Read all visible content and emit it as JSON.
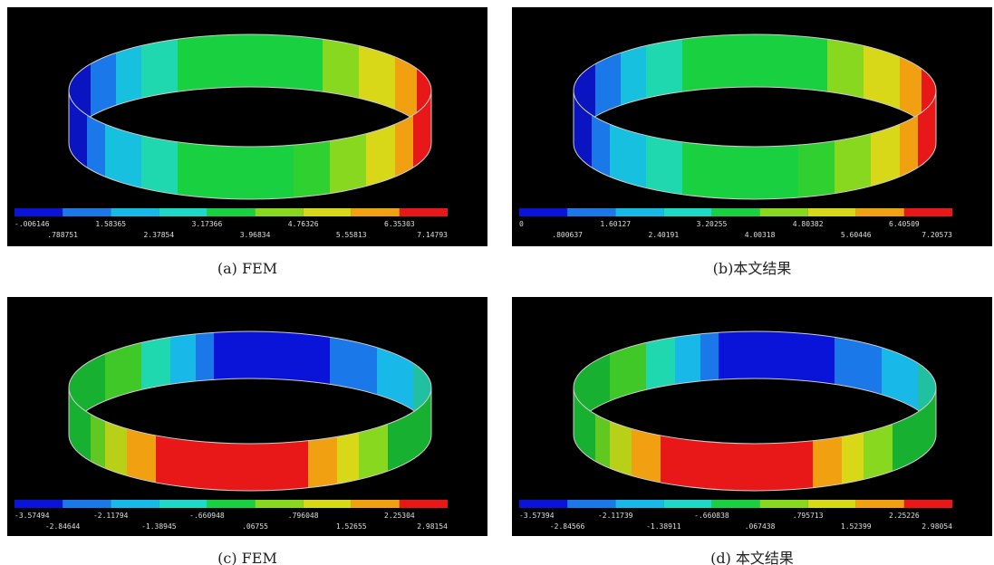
{
  "panels": [
    {
      "caption": "(a) FEM",
      "colorbar_labels": [
        "-.006146",
        ".788751",
        "1.58365",
        "2.37854",
        "3.17366",
        "3.96834",
        "4.76326",
        "5.55813",
        "6.35303",
        "7.14793"
      ]
    },
    {
      "caption": "(b)本文结果",
      "colorbar_labels": [
        "0",
        ".800637",
        "1.60127",
        "2.40191",
        "3.20255",
        "4.00318",
        "4.80382",
        "5.60446",
        "6.40509",
        "7.20573"
      ]
    },
    {
      "caption": "(c) FEM",
      "colorbar_labels": [
        "-3.57494",
        "-2.84644",
        "-2.11794",
        "-1.38945",
        "-.660948",
        ".06755",
        ".796048",
        "1.52655",
        "2.25304",
        "2.98154"
      ]
    },
    {
      "caption": "(d) 本文结果",
      "colorbar_labels": [
        "-3.57394",
        "-2.84566",
        "-2.11739",
        "-1.38911",
        "-.660838",
        ".067438",
        ".795713",
        "1.52399",
        "2.25226",
        "2.98054"
      ]
    }
  ]
}
